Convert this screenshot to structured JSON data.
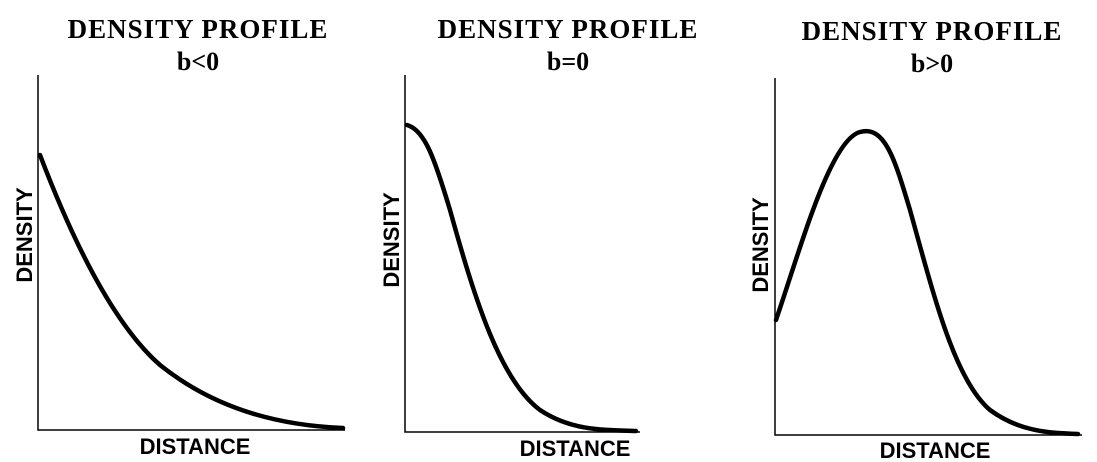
{
  "panels": [
    {
      "title": "DENSITY PROFILE",
      "subtitle": "b<0",
      "x_label": "DISTANCE",
      "y_label": "DENSITY"
    },
    {
      "title": "DENSITY PROFILE",
      "subtitle": "b=0",
      "x_label": "DISTANCE",
      "y_label": "DENSITY"
    },
    {
      "title": "DENSITY PROFILE",
      "subtitle": "b>0",
      "x_label": "DISTANCE",
      "y_label": "DENSITY"
    }
  ]
}
